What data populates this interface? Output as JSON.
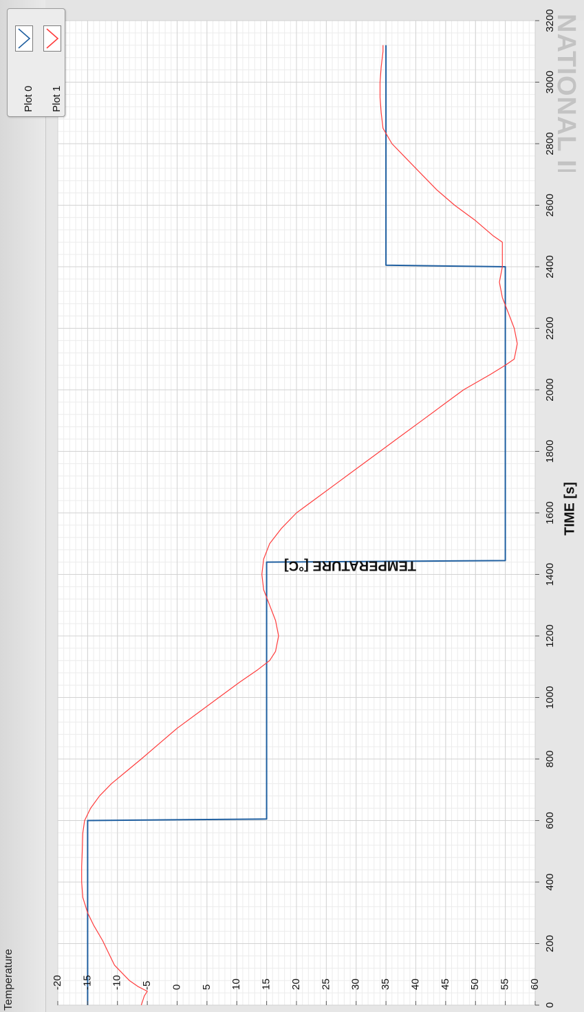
{
  "chart_data": {
    "type": "line",
    "title": "Temperature",
    "xlabel": "TIME [s]",
    "ylabel": "TEMPERATURE [°C]",
    "xlim": [
      0,
      3200
    ],
    "ylim": [
      -20,
      60
    ],
    "x_ticks": [
      "0",
      "200",
      "400",
      "600",
      "800",
      "1000",
      "1200",
      "1400",
      "1600",
      "1800",
      "2000",
      "2200",
      "2400",
      "2600",
      "2800",
      "3000",
      "3200"
    ],
    "y_ticks": [
      "-20",
      "-15",
      "-10",
      "-5",
      "0",
      "5",
      "10",
      "15",
      "20",
      "25",
      "30",
      "35",
      "40",
      "45",
      "50",
      "55",
      "60"
    ],
    "grid": true,
    "legend": "top-left",
    "series": [
      {
        "name": "Plot 0",
        "color": "#1f5fa0",
        "points": [
          [
            0,
            -15
          ],
          [
            600,
            -15
          ],
          [
            605,
            15
          ],
          [
            1440,
            15
          ],
          [
            1445,
            55
          ],
          [
            2400,
            55
          ],
          [
            2405,
            35
          ],
          [
            3120,
            35
          ]
        ]
      },
      {
        "name": "Plot 1",
        "color": "#ff3b3b",
        "points": [
          [
            0,
            -6
          ],
          [
            30,
            -5.5
          ],
          [
            45,
            -5
          ],
          [
            60,
            -6.5
          ],
          [
            80,
            -8
          ],
          [
            100,
            -9
          ],
          [
            130,
            -10.5
          ],
          [
            170,
            -11.5
          ],
          [
            210,
            -12.5
          ],
          [
            260,
            -14
          ],
          [
            300,
            -15
          ],
          [
            350,
            -15.8
          ],
          [
            400,
            -16
          ],
          [
            450,
            -16
          ],
          [
            500,
            -15.9
          ],
          [
            560,
            -15.8
          ],
          [
            600,
            -15.5
          ],
          [
            640,
            -14.5
          ],
          [
            680,
            -13
          ],
          [
            720,
            -11
          ],
          [
            760,
            -8.5
          ],
          [
            800,
            -6
          ],
          [
            850,
            -3
          ],
          [
            900,
            0
          ],
          [
            950,
            3.5
          ],
          [
            1000,
            7
          ],
          [
            1050,
            10.5
          ],
          [
            1090,
            13.5
          ],
          [
            1120,
            15.5
          ],
          [
            1150,
            16.5
          ],
          [
            1200,
            17
          ],
          [
            1250,
            16.5
          ],
          [
            1300,
            15.5
          ],
          [
            1350,
            14.5
          ],
          [
            1400,
            14.2
          ],
          [
            1450,
            14.5
          ],
          [
            1500,
            15.5
          ],
          [
            1550,
            17.5
          ],
          [
            1600,
            20
          ],
          [
            1650,
            23.5
          ],
          [
            1700,
            27
          ],
          [
            1750,
            30.5
          ],
          [
            1800,
            34
          ],
          [
            1850,
            37.5
          ],
          [
            1900,
            41
          ],
          [
            1950,
            44.5
          ],
          [
            2000,
            48
          ],
          [
            2050,
            52.5
          ],
          [
            2080,
            55
          ],
          [
            2100,
            56.5
          ],
          [
            2150,
            57
          ],
          [
            2200,
            56.5
          ],
          [
            2250,
            55.5
          ],
          [
            2300,
            54.5
          ],
          [
            2350,
            54
          ],
          [
            2400,
            54.5
          ],
          [
            2450,
            54.5
          ],
          [
            2480,
            54.5
          ],
          [
            2500,
            53
          ],
          [
            2550,
            50
          ],
          [
            2600,
            46.5
          ],
          [
            2650,
            43.5
          ],
          [
            2700,
            41
          ],
          [
            2750,
            38.5
          ],
          [
            2800,
            36
          ],
          [
            2850,
            34.5
          ],
          [
            2900,
            34.2
          ],
          [
            2950,
            34
          ],
          [
            3000,
            34
          ],
          [
            3050,
            34.2
          ],
          [
            3100,
            34.5
          ],
          [
            3120,
            34.5
          ]
        ]
      }
    ]
  },
  "legend_items": [
    {
      "label": "Plot 0",
      "color": "#1f5fa0"
    },
    {
      "label": "Plot 1",
      "color": "#ff3b3b"
    }
  ],
  "watermark_text": "NATIONAL INSTRUMENTS"
}
